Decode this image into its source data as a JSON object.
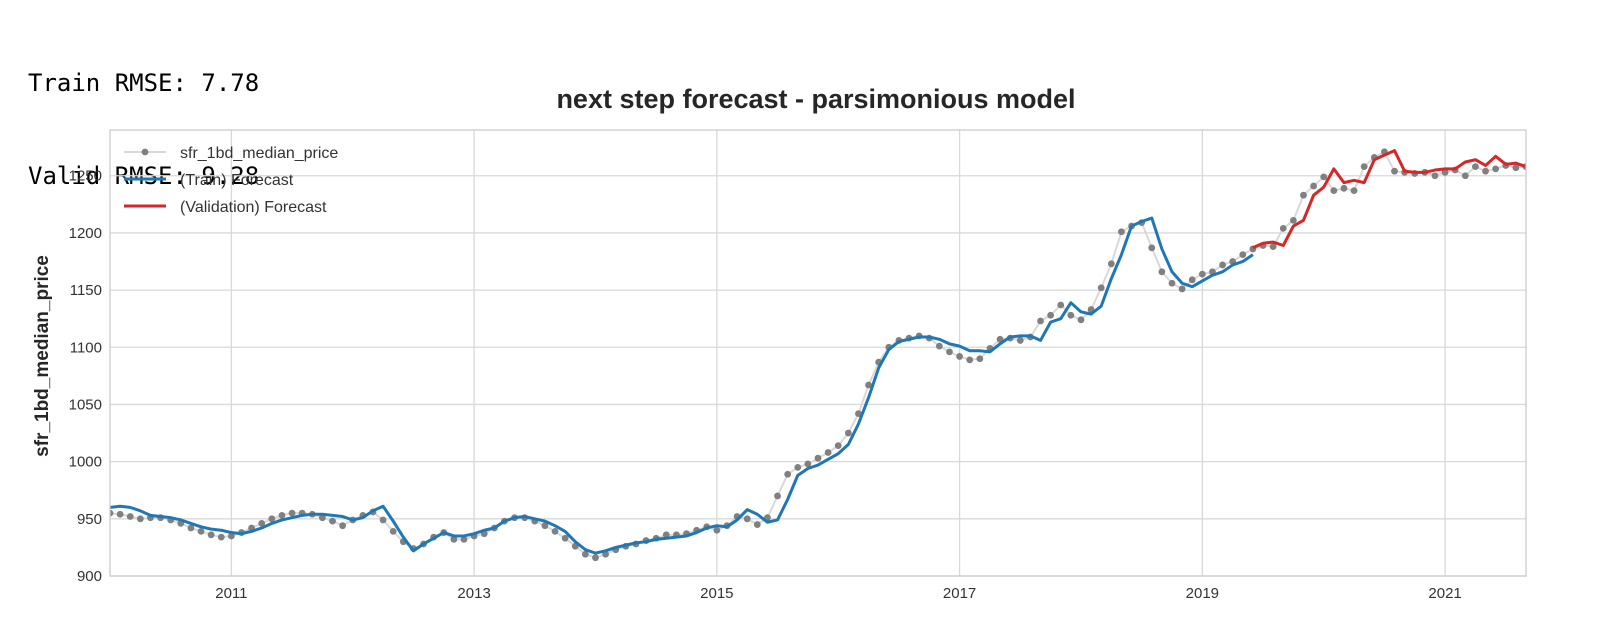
{
  "output": {
    "line1": "Train RMSE: 7.78",
    "line2": "Valid RMSE: 9.28"
  },
  "colors": {
    "actual_points": "#808080",
    "actual_line": "#d9d9d9",
    "train": "#1f77b4",
    "validation": "#d62728",
    "grid": "#d9d9d9",
    "frame": "#cccccc"
  },
  "chart_data": {
    "type": "line",
    "title": "next step forecast - parsimonious model",
    "xlabel": "",
    "ylabel": "sfr_1bd_median_price",
    "xlim": [
      "2010-01",
      "2021-09"
    ],
    "ylim": [
      900,
      1290
    ],
    "x_ticks": [
      "2011",
      "2013",
      "2015",
      "2017",
      "2019",
      "2021"
    ],
    "y_ticks": [
      900,
      950,
      1000,
      1050,
      1100,
      1150,
      1200,
      1250
    ],
    "grid": true,
    "legend_position": "top-left",
    "series": [
      {
        "name": "sfr_1bd_median_price",
        "style": "points-with-light-line",
        "start": "2010-01",
        "frequency": "monthly",
        "values": [
          955,
          954,
          952,
          950,
          951,
          951,
          949,
          946,
          942,
          939,
          936,
          934,
          935,
          938,
          942,
          946,
          950,
          953,
          955,
          955,
          954,
          951,
          948,
          944,
          949,
          953,
          956,
          949,
          939,
          930,
          924,
          928,
          934,
          938,
          932,
          932,
          935,
          937,
          942,
          948,
          951,
          951,
          948,
          944,
          939,
          933,
          926,
          919,
          916,
          919,
          923,
          926,
          928,
          931,
          933,
          936,
          936,
          937,
          940,
          943,
          940,
          944,
          952,
          950,
          945,
          951,
          970,
          989,
          995,
          998,
          1003,
          1008,
          1014,
          1025,
          1042,
          1067,
          1087,
          1100,
          1106,
          1108,
          1110,
          1108,
          1101,
          1096,
          1092,
          1089,
          1090,
          1099,
          1107,
          1108,
          1106,
          1109,
          1123,
          1128,
          1137,
          1128,
          1124,
          1133,
          1152,
          1173,
          1201,
          1206,
          1209,
          1187,
          1166,
          1156,
          1151,
          1159,
          1164,
          1166,
          1172,
          1175,
          1181,
          1186,
          1189,
          1188,
          1204,
          1211,
          1233,
          1241,
          1249,
          1237,
          1239,
          1237,
          1258,
          1266,
          1271,
          1254,
          1253,
          1252,
          1253,
          1250,
          1253,
          1255,
          1250,
          1258,
          1254,
          1256,
          1259,
          1257,
          1258
        ]
      },
      {
        "name": "(Train) Forecast",
        "style": "line",
        "start": "2010-01",
        "frequency": "monthly",
        "values": [
          960,
          961,
          960,
          957,
          953,
          952,
          951,
          949,
          946,
          943,
          941,
          940,
          938,
          937,
          939,
          942,
          946,
          949,
          951,
          953,
          954,
          954,
          953,
          952,
          949,
          951,
          957,
          961,
          948,
          934,
          922,
          928,
          933,
          938,
          935,
          935,
          937,
          940,
          942,
          948,
          951,
          952,
          950,
          948,
          944,
          939,
          930,
          923,
          920,
          922,
          925,
          927,
          929,
          930,
          932,
          933,
          934,
          935,
          938,
          942,
          944,
          943,
          949,
          958,
          954,
          947,
          949,
          967,
          988,
          994,
          997,
          1002,
          1007,
          1015,
          1033,
          1056,
          1082,
          1098,
          1105,
          1107,
          1109,
          1109,
          1107,
          1103,
          1101,
          1097,
          1097,
          1096,
          1103,
          1109,
          1110,
          1110,
          1106,
          1122,
          1125,
          1139,
          1131,
          1129,
          1136,
          1160,
          1181,
          1206,
          1210,
          1213,
          1186,
          1166,
          1156,
          1153,
          1158,
          1163,
          1166,
          1172,
          1175,
          1181
        ]
      },
      {
        "name": "(Validation) Forecast",
        "style": "line",
        "start": "2019-06",
        "frequency": "monthly",
        "values": [
          1187,
          1191,
          1192,
          1189,
          1206,
          1211,
          1233,
          1240,
          1256,
          1244,
          1246,
          1244,
          1264,
          1268,
          1272,
          1254,
          1253,
          1253,
          1255,
          1256,
          1256,
          1262,
          1264,
          1259,
          1267,
          1260,
          1261,
          1258
        ]
      }
    ]
  }
}
